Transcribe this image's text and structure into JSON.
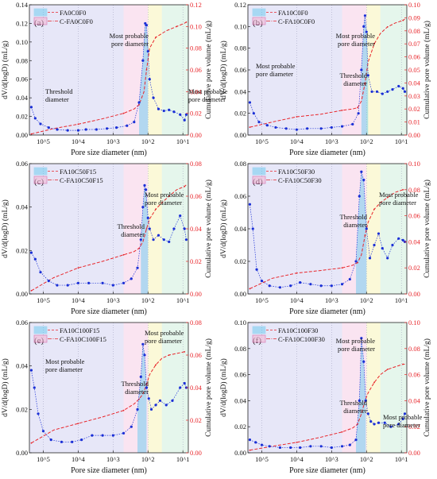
{
  "figure": {
    "x_axis_label": "Pore size diameter (nm)",
    "y_left_label": "dV/d(logD) (mL/g)",
    "y_right_label": "Cumulative pore volume (mL/g)",
    "x_tick_labels": [
      "10^5",
      "10^4",
      "10^3",
      "10^2",
      "10^1"
    ],
    "colors": {
      "differential": "#1a2fd6",
      "cumulative": "#e8262b",
      "peak_fill": "#5bc8ef",
      "zone_blue": "#d3d4f2",
      "zone_pink": "#f6cde6",
      "zone_yellow": "#f7f4b8",
      "zone_green": "#cfeedd"
    }
  },
  "chart_data": [
    {
      "type": "line",
      "panel": "(a)",
      "x_axis": "pore diameter (nm), log scale, decreasing left to right",
      "xlim_nm": [
        250000,
        7
      ],
      "ylim_left": [
        0,
        0.14
      ],
      "yticks_left": [
        "0.00",
        "0.02",
        "0.04",
        "0.06",
        "0.08",
        "0.10",
        "0.12",
        "0.14"
      ],
      "ylim_right": [
        0,
        0.12
      ],
      "yticks_right": [
        "0.00",
        "0.02",
        "0.04",
        "0.06",
        "0.08",
        "0.10",
        "0.12"
      ],
      "legend": [
        "FA0C0F0",
        "C-FA0C0F0"
      ],
      "annotations": [
        "Most probable pore diameter",
        "Threshold diameter",
        "Most probable pore diameter"
      ],
      "series": [
        {
          "name": "FA0C0F0",
          "axis": "left",
          "x": [
            220000,
            170000,
            120000,
            70000,
            40000,
            20000,
            10000,
            6000,
            3000,
            1500,
            800,
            400,
            250,
            180,
            140,
            120,
            110,
            100,
            90,
            70,
            50,
            35,
            25,
            18,
            12,
            9,
            8
          ],
          "y": [
            0.03,
            0.018,
            0.012,
            0.008,
            0.006,
            0.005,
            0.005,
            0.006,
            0.006,
            0.007,
            0.008,
            0.01,
            0.014,
            0.035,
            0.08,
            0.12,
            0.118,
            0.09,
            0.06,
            0.04,
            0.028,
            0.026,
            0.027,
            0.025,
            0.022,
            0.016,
            0.022
          ]
        },
        {
          "name": "C-FA0C0F0",
          "axis": "right",
          "x": [
            220000,
            50000,
            10000,
            2000,
            500,
            250,
            180,
            130,
            110,
            90,
            60,
            30,
            15,
            9,
            8
          ],
          "y": [
            0.001,
            0.006,
            0.01,
            0.015,
            0.02,
            0.024,
            0.028,
            0.04,
            0.06,
            0.08,
            0.09,
            0.096,
            0.1,
            0.103,
            0.104
          ]
        }
      ]
    },
    {
      "type": "line",
      "panel": "(b)",
      "x_axis": "pore diameter (nm), log scale, decreasing left to right",
      "xlim_nm": [
        250000,
        7
      ],
      "ylim_left": [
        0,
        0.12
      ],
      "yticks_left": [
        "0.00",
        "0.02",
        "0.04",
        "0.06",
        "0.08",
        "0.10",
        "0.12"
      ],
      "ylim_right": [
        0,
        0.1
      ],
      "yticks_right": [
        "0.00",
        "0.01",
        "0.02",
        "0.03",
        "0.04",
        "0.05",
        "0.06",
        "0.07",
        "0.08",
        "0.09",
        "0.10"
      ],
      "legend": [
        "FA10C0F0",
        "C-FA10C0F0"
      ],
      "annotations": [
        "Most probable pore diameter",
        "Most probable pore diameter",
        "Threshold diameter"
      ],
      "series": [
        {
          "name": "FA10C0F0",
          "axis": "left",
          "x": [
            220000,
            170000,
            120000,
            70000,
            40000,
            20000,
            10000,
            5000,
            2000,
            1000,
            500,
            250,
            170,
            140,
            120,
            110,
            100,
            90,
            70,
            50,
            35,
            25,
            18,
            12,
            9,
            8
          ],
          "y": [
            0.03,
            0.02,
            0.012,
            0.009,
            0.007,
            0.006,
            0.005,
            0.006,
            0.006,
            0.007,
            0.008,
            0.01,
            0.02,
            0.06,
            0.1,
            0.11,
            0.095,
            0.055,
            0.04,
            0.04,
            0.038,
            0.04,
            0.042,
            0.045,
            0.043,
            0.04
          ]
        },
        {
          "name": "C-FA10C0F0",
          "axis": "right",
          "x": [
            220000,
            50000,
            10000,
            2000,
            500,
            250,
            180,
            140,
            110,
            90,
            60,
            40,
            25,
            15,
            9,
            8
          ],
          "y": [
            0.006,
            0.01,
            0.014,
            0.016,
            0.019,
            0.02,
            0.021,
            0.026,
            0.04,
            0.056,
            0.07,
            0.078,
            0.083,
            0.086,
            0.088,
            0.089
          ]
        }
      ]
    },
    {
      "type": "line",
      "panel": "(c)",
      "x_axis": "pore diameter (nm), log scale, decreasing left to right",
      "xlim_nm": [
        250000,
        7
      ],
      "ylim_left": [
        0,
        0.06
      ],
      "yticks_left": [
        "0.00",
        "0.02",
        "0.04",
        "0.06"
      ],
      "ylim_right": [
        0,
        0.08
      ],
      "yticks_right": [
        "0.00",
        "0.02",
        "0.04",
        "0.06",
        "0.08"
      ],
      "legend": [
        "FA10C50F15",
        "C-FA10C50F15"
      ],
      "annotations": [
        "Most probable pore diameter",
        "Threshold diameter"
      ],
      "series": [
        {
          "name": "FA10C50F15",
          "axis": "left",
          "x": [
            220000,
            170000,
            120000,
            70000,
            40000,
            20000,
            10000,
            5000,
            2000,
            1000,
            500,
            300,
            200,
            160,
            140,
            125,
            115,
            100,
            90,
            70,
            50,
            35,
            25,
            18,
            12,
            9,
            8
          ],
          "y": [
            0.019,
            0.016,
            0.01,
            0.006,
            0.004,
            0.004,
            0.005,
            0.005,
            0.005,
            0.004,
            0.005,
            0.007,
            0.012,
            0.025,
            0.04,
            0.05,
            0.048,
            0.035,
            0.03,
            0.025,
            0.027,
            0.025,
            0.024,
            0.03,
            0.036,
            0.03,
            0.025
          ]
        },
        {
          "name": "C-FA10C50F15",
          "axis": "right",
          "x": [
            220000,
            50000,
            10000,
            2000,
            500,
            250,
            180,
            140,
            110,
            90,
            60,
            40,
            25,
            15,
            9,
            8
          ],
          "y": [
            0.002,
            0.01,
            0.016,
            0.02,
            0.024,
            0.026,
            0.028,
            0.032,
            0.04,
            0.046,
            0.052,
            0.056,
            0.06,
            0.064,
            0.066,
            0.067
          ]
        }
      ]
    },
    {
      "type": "line",
      "panel": "(d)",
      "x_axis": "pore diameter (nm), log scale, decreasing left to right",
      "xlim_nm": [
        250000,
        7
      ],
      "ylim_left": [
        0,
        0.08
      ],
      "yticks_left": [
        "0.00",
        "0.02",
        "0.04",
        "0.06",
        "0.08"
      ],
      "ylim_right": [
        0,
        0.1
      ],
      "yticks_right": [
        "0.00",
        "0.02",
        "0.04",
        "0.06",
        "0.08",
        "0.10"
      ],
      "legend": [
        "FA10C50F30",
        "C-FA10C50F30"
      ],
      "annotations": [
        "Most probable pore diameter",
        "Threshold diameter"
      ],
      "series": [
        {
          "name": "FA10C50F30",
          "axis": "left",
          "x": [
            220000,
            180000,
            140000,
            100000,
            60000,
            30000,
            15000,
            8000,
            4000,
            2000,
            1000,
            500,
            300,
            200,
            160,
            140,
            120,
            100,
            80,
            60,
            45,
            35,
            25,
            18,
            12,
            9,
            8
          ],
          "y": [
            0.055,
            0.04,
            0.015,
            0.008,
            0.005,
            0.004,
            0.005,
            0.007,
            0.006,
            0.005,
            0.005,
            0.006,
            0.009,
            0.02,
            0.06,
            0.075,
            0.07,
            0.04,
            0.022,
            0.03,
            0.037,
            0.028,
            0.022,
            0.03,
            0.034,
            0.033,
            0.032
          ]
        },
        {
          "name": "C-FA10C50F30",
          "axis": "right",
          "x": [
            220000,
            50000,
            10000,
            2000,
            500,
            250,
            180,
            140,
            110,
            90,
            60,
            40,
            25,
            15,
            9,
            8
          ],
          "y": [
            0.004,
            0.012,
            0.016,
            0.018,
            0.02,
            0.022,
            0.024,
            0.03,
            0.045,
            0.055,
            0.065,
            0.07,
            0.074,
            0.078,
            0.08,
            0.08
          ]
        }
      ]
    },
    {
      "type": "line",
      "panel": "(e)",
      "x_axis": "pore diameter (nm), log scale, decreasing left to right",
      "xlim_nm": [
        250000,
        7
      ],
      "ylim_left": [
        0,
        0.06
      ],
      "yticks_left": [
        "0.00",
        "0.02",
        "0.04",
        "0.06"
      ],
      "ylim_right": [
        0,
        0.08
      ],
      "yticks_right": [
        "0.00",
        "0.02",
        "0.04",
        "0.06",
        "0.08"
      ],
      "legend": [
        "FA10C100F15",
        "C-FA10C100F15"
      ],
      "annotations": [
        "Most probable pore diameter",
        "Threshold diameter",
        "Most probable pore diameter"
      ],
      "series": [
        {
          "name": "FA10C100F15",
          "axis": "left",
          "x": [
            220000,
            180000,
            140000,
            100000,
            60000,
            30000,
            15000,
            8000,
            4000,
            2000,
            1000,
            500,
            300,
            200,
            160,
            140,
            125,
            110,
            95,
            80,
            60,
            45,
            30,
            20,
            12,
            9,
            8
          ],
          "y": [
            0.038,
            0.03,
            0.018,
            0.01,
            0.006,
            0.005,
            0.005,
            0.006,
            0.008,
            0.008,
            0.008,
            0.009,
            0.012,
            0.02,
            0.035,
            0.05,
            0.045,
            0.03,
            0.025,
            0.02,
            0.022,
            0.024,
            0.022,
            0.024,
            0.03,
            0.032,
            0.03
          ]
        },
        {
          "name": "C-FA10C100F15",
          "axis": "right",
          "x": [
            220000,
            50000,
            10000,
            2000,
            500,
            250,
            180,
            140,
            110,
            90,
            60,
            40,
            25,
            15,
            9,
            8
          ],
          "y": [
            0.006,
            0.014,
            0.018,
            0.022,
            0.026,
            0.03,
            0.033,
            0.036,
            0.042,
            0.048,
            0.054,
            0.058,
            0.06,
            0.061,
            0.062,
            0.062
          ]
        }
      ]
    },
    {
      "type": "line",
      "panel": "(f)",
      "x_axis": "pore diameter (nm), log scale, decreasing left to right",
      "xlim_nm": [
        250000,
        7
      ],
      "ylim_left": [
        0,
        0.1
      ],
      "yticks_left": [
        "0.00",
        "0.02",
        "0.04",
        "0.06",
        "0.08",
        "0.10"
      ],
      "ylim_right": [
        0,
        0.1
      ],
      "yticks_right": [
        "0.00",
        "0.02",
        "0.04",
        "0.06",
        "0.08",
        "0.10"
      ],
      "legend": [
        "FA10C100F30",
        "C-FA10C100F30"
      ],
      "annotations": [
        "Most probable pore diameter",
        "Threshold diameter",
        "Most probable pore diameter"
      ],
      "series": [
        {
          "name": "FA10C100F30",
          "axis": "left",
          "x": [
            220000,
            150000,
            100000,
            60000,
            30000,
            15000,
            8000,
            4000,
            2000,
            1000,
            500,
            300,
            200,
            160,
            140,
            120,
            105,
            90,
            75,
            60,
            45,
            30,
            20,
            12,
            9,
            8
          ],
          "y": [
            0.01,
            0.008,
            0.006,
            0.005,
            0.004,
            0.004,
            0.004,
            0.005,
            0.005,
            0.004,
            0.005,
            0.006,
            0.01,
            0.04,
            0.088,
            0.07,
            0.04,
            0.03,
            0.024,
            0.022,
            0.023,
            0.023,
            0.02,
            0.022,
            0.026,
            0.03
          ]
        },
        {
          "name": "C-FA10C100F30",
          "axis": "right",
          "x": [
            220000,
            50000,
            10000,
            2000,
            500,
            250,
            180,
            140,
            110,
            90,
            60,
            40,
            25,
            15,
            9,
            8
          ],
          "y": [
            0.002,
            0.005,
            0.008,
            0.012,
            0.016,
            0.019,
            0.022,
            0.03,
            0.04,
            0.046,
            0.054,
            0.06,
            0.064,
            0.066,
            0.068,
            0.068
          ]
        }
      ]
    }
  ]
}
